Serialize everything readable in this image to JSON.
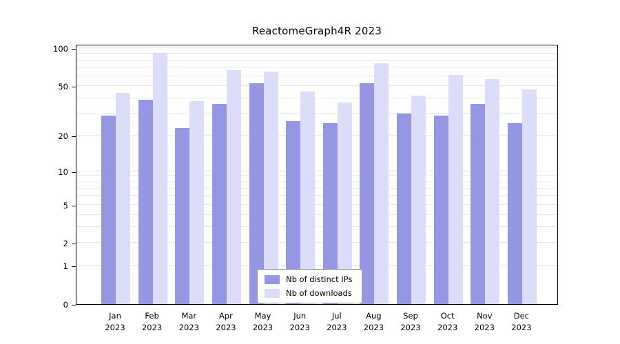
{
  "chart_data": {
    "type": "bar",
    "title": "ReactomeGraph4R 2023",
    "categories": [
      "Jan",
      "Feb",
      "Mar",
      "Apr",
      "May",
      "Jun",
      "Jul",
      "Aug",
      "Sep",
      "Oct",
      "Nov",
      "Dec"
    ],
    "x_year": "2023",
    "series": [
      {
        "name": "Nb of distinct IPs",
        "color": "#9697e4",
        "values": [
          29,
          39,
          23,
          36,
          53,
          26,
          25,
          53,
          30,
          29,
          36,
          25
        ]
      },
      {
        "name": "Nb of downloads",
        "color": "#dcddf8",
        "values": [
          44,
          92,
          38,
          67,
          65,
          45,
          37,
          76,
          42,
          61,
          57,
          47
        ]
      }
    ],
    "y_ticks": [
      0,
      1,
      2,
      5,
      10,
      20,
      50,
      100
    ],
    "y_scale": "log1p",
    "ylim": [
      0,
      100
    ],
    "grid": "horizontal",
    "legend_position": "bottom-center"
  }
}
